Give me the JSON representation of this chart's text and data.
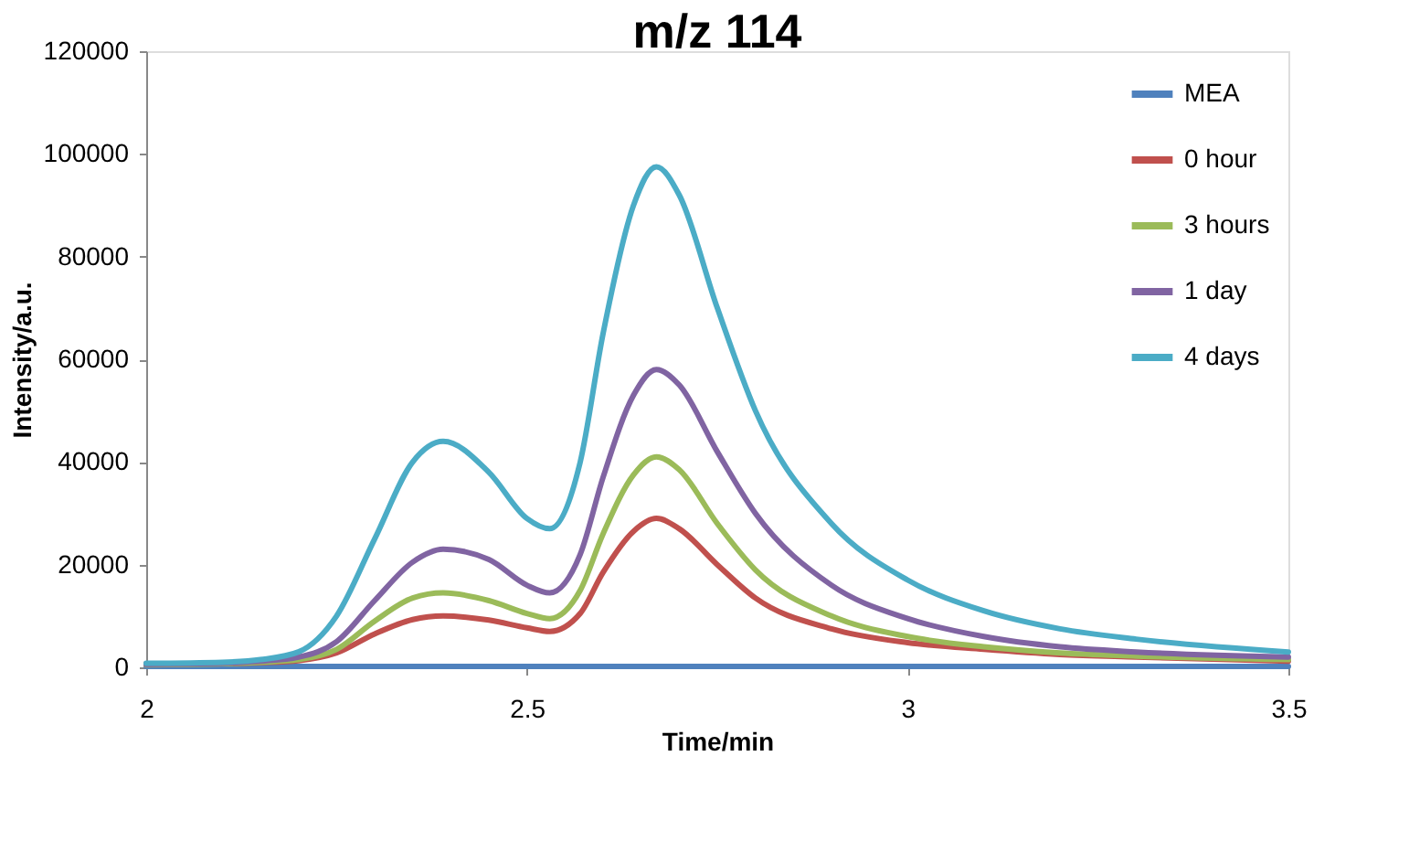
{
  "chart_data": {
    "type": "line",
    "title": "m/z 114",
    "xlabel": "Time/min",
    "ylabel": "Intensity/a.u.",
    "x": [
      2.0,
      2.1,
      2.15,
      2.2,
      2.25,
      2.3,
      2.35,
      2.39,
      2.45,
      2.5,
      2.53,
      2.57,
      2.6,
      2.64,
      2.67,
      2.7,
      2.75,
      2.8,
      2.9,
      3.0,
      3.1,
      3.2,
      3.3,
      3.5
    ],
    "series": [
      {
        "name": "MEA",
        "color": "#4f81bd",
        "values": [
          200,
          200,
          200,
          200,
          200,
          200,
          200,
          200,
          200,
          200,
          200,
          200,
          200,
          200,
          200,
          200,
          200,
          200,
          200,
          200,
          200,
          200,
          200,
          200
        ]
      },
      {
        "name": "0 hour",
        "color": "#c0504d",
        "values": [
          700,
          700,
          900,
          1300,
          2800,
          6500,
          9300,
          10000,
          9200,
          7700,
          7000,
          10500,
          18500,
          26500,
          29000,
          27000,
          20000,
          13500,
          7500,
          4800,
          3500,
          2500,
          2000,
          1200
        ]
      },
      {
        "name": "3 hours",
        "color": "#9bbb59",
        "values": [
          500,
          700,
          1000,
          1500,
          3500,
          9000,
          13500,
          14500,
          13000,
          10500,
          9500,
          15000,
          26000,
          37500,
          41000,
          38500,
          28000,
          19000,
          10000,
          6000,
          4000,
          2800,
          2200,
          1500
        ]
      },
      {
        "name": "1 day",
        "color": "#8064a2",
        "values": [
          600,
          800,
          1200,
          2000,
          5000,
          13000,
          20500,
          23000,
          21000,
          16000,
          14500,
          22000,
          37000,
          53000,
          58000,
          55000,
          42000,
          30000,
          16000,
          9500,
          6000,
          4000,
          3000,
          2000
        ]
      },
      {
        "name": "4 days",
        "color": "#4bacc6",
        "values": [
          800,
          1000,
          1500,
          3000,
          10000,
          25000,
          40000,
          44000,
          38000,
          29000,
          27000,
          40000,
          65000,
          90000,
          97500,
          92000,
          70000,
          50000,
          28000,
          17000,
          11000,
          7500,
          5500,
          3000
        ]
      }
    ],
    "xlim": [
      2,
      3.5
    ],
    "xticks": [
      2,
      2.5,
      3,
      3.5
    ],
    "ylim": [
      0,
      120000
    ],
    "yticks": [
      0,
      20000,
      40000,
      60000,
      80000,
      100000,
      120000
    ],
    "grid": false,
    "legend": "top right",
    "marker": "none",
    "line_style": "solid"
  }
}
